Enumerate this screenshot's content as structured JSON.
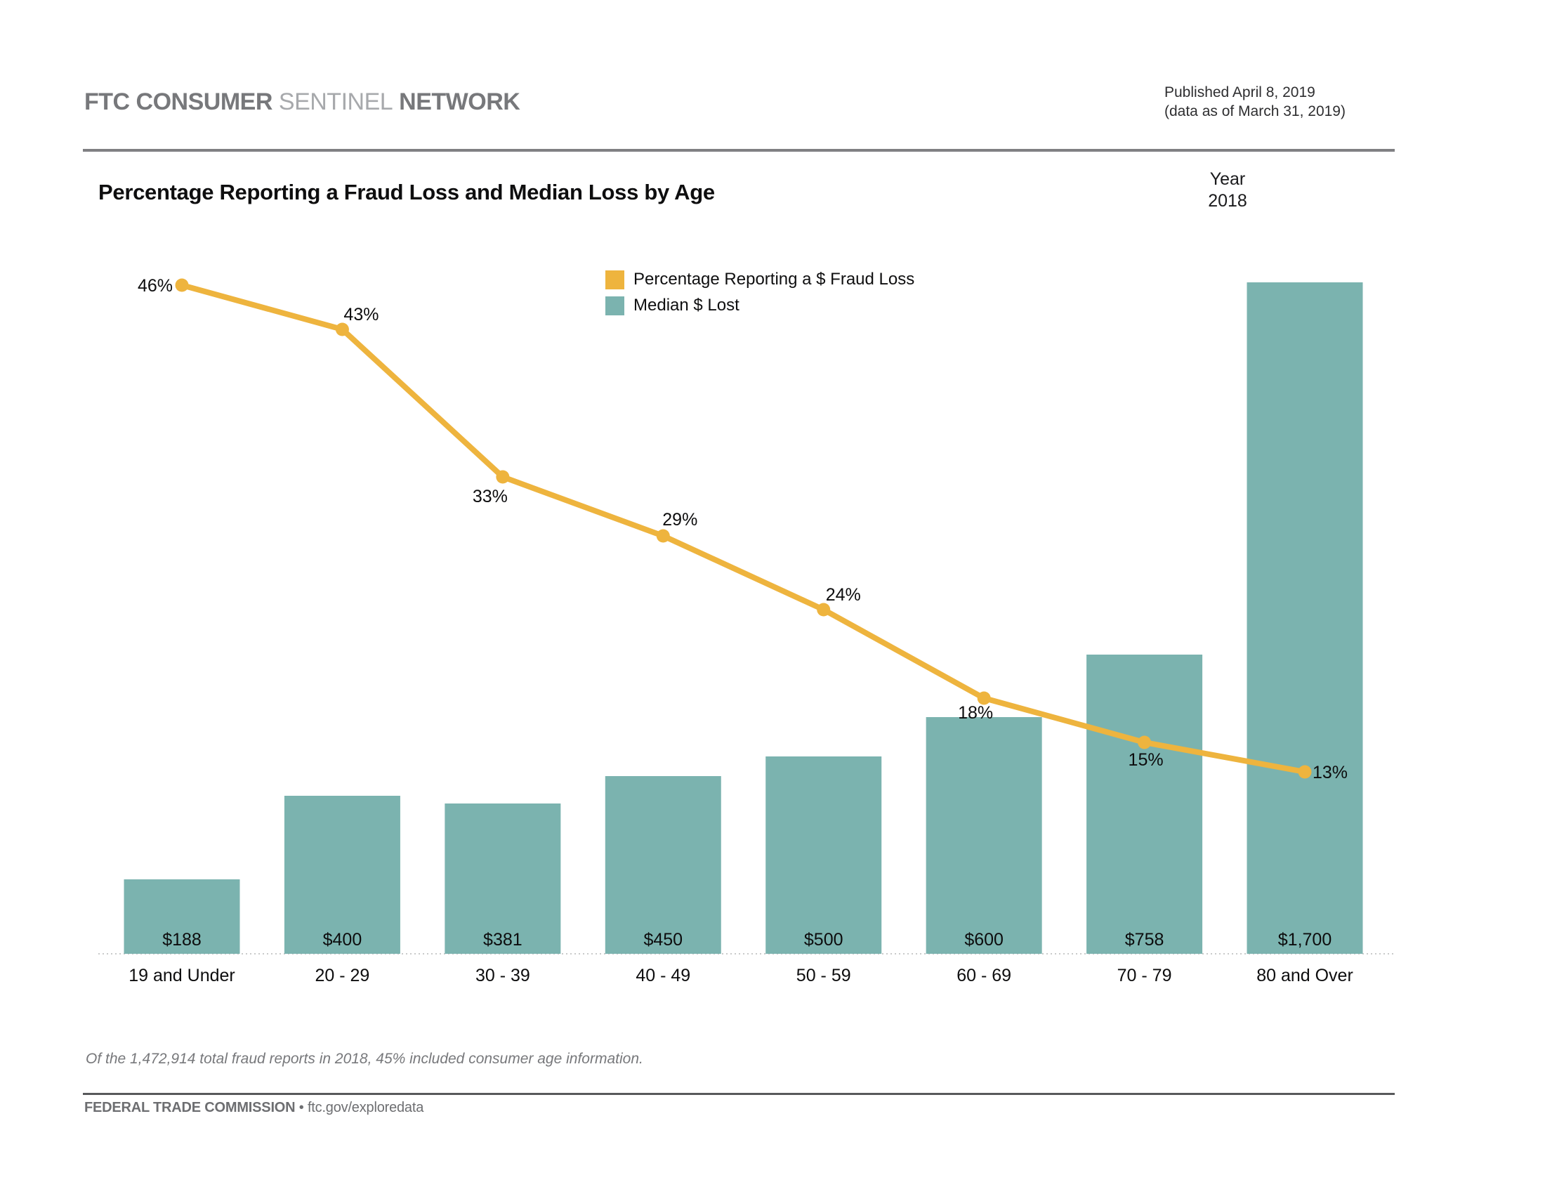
{
  "header": {
    "brand_part1": "FTC CONSUMER",
    "brand_part2": "SENTINEL",
    "brand_part3": "NETWORK",
    "published_line1": "Published April 8, 2019",
    "published_line2": "(data as of March 31, 2019)"
  },
  "chart_header": {
    "title": "Percentage Reporting a Fraud Loss and Median Loss by Age",
    "year_label": "Year",
    "year_value": "2018"
  },
  "legend": {
    "items": [
      {
        "label": "Percentage Reporting a $ Fraud Loss",
        "color": "#EEB43E"
      },
      {
        "label": "Median $ Lost",
        "color": "#7BB3AF"
      }
    ]
  },
  "chart_data": {
    "type": "combo-bar-line",
    "title": "Percentage Reporting a Fraud Loss and Median Loss by Age",
    "year": "2018",
    "categories": [
      "19 and Under",
      "20 - 29",
      "30 - 39",
      "40 - 49",
      "50 - 59",
      "60 - 69",
      "70 - 79",
      "80 and Over"
    ],
    "series": [
      {
        "name": "Percentage Reporting a $ Fraud Loss",
        "type": "line",
        "unit": "percent",
        "color": "#EEB43E",
        "values": [
          46,
          43,
          33,
          29,
          24,
          18,
          15,
          13
        ],
        "labels": [
          "46%",
          "43%",
          "33%",
          "29%",
          "24%",
          "18%",
          "15%",
          "13%"
        ]
      },
      {
        "name": "Median $ Lost",
        "type": "bar",
        "unit": "USD",
        "color": "#7BB3AF",
        "values": [
          188,
          400,
          381,
          450,
          500,
          600,
          758,
          1700
        ],
        "labels": [
          "$188",
          "$400",
          "$381",
          "$450",
          "$500",
          "$600",
          "$758",
          "$1,700"
        ]
      }
    ],
    "legend_position": "top-center",
    "grid": false,
    "baseline_style": "dotted",
    "baseline_color": "#C9CACA"
  },
  "footnote": "Of the 1,472,914 total fraud reports in 2018, 45% included consumer age information.",
  "footer": {
    "org": "FEDERAL TRADE COMMISSION",
    "bullet": "•",
    "url": "ftc.gov/exploredata"
  }
}
